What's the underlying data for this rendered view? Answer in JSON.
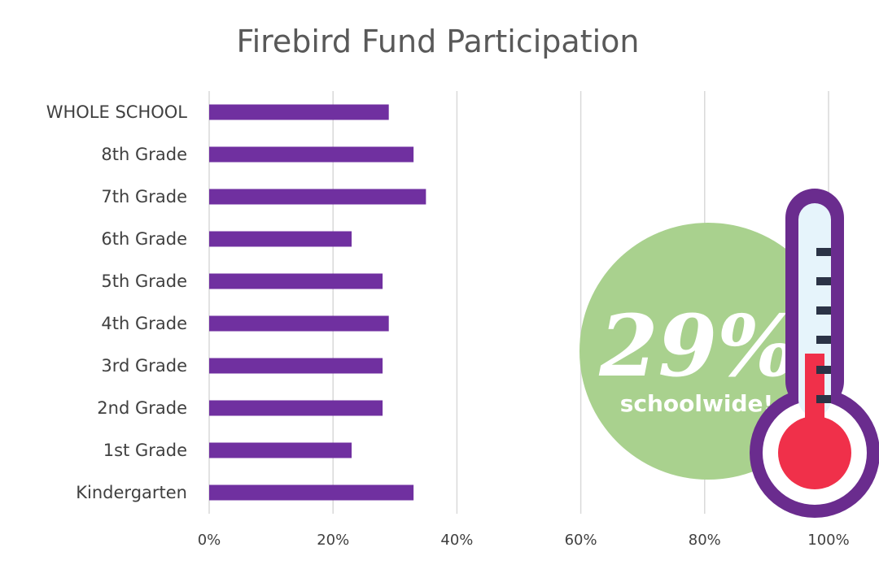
{
  "chart_data": {
    "type": "bar",
    "orientation": "horizontal",
    "title": "Firebird Fund Participation",
    "categories": [
      "WHOLE SCHOOL",
      "8th Grade",
      "7th Grade",
      "6th Grade",
      "5th Grade",
      "4th Grade",
      "3rd Grade",
      "2nd Grade",
      "1st Grade",
      "Kindergarten"
    ],
    "values": [
      0.29,
      0.33,
      0.35,
      0.23,
      0.28,
      0.29,
      0.28,
      0.28,
      0.23,
      0.33
    ],
    "xlim": [
      0,
      1
    ],
    "xticks": [
      "0%",
      "20%",
      "40%",
      "60%",
      "80%",
      "100%"
    ],
    "grid": true,
    "bar_color": "#7030a0"
  },
  "callout": {
    "value": "29%",
    "label": "schoolwide!",
    "circle_color": "#a9d18e"
  },
  "thermometer": {
    "icon": "thermometer-icon",
    "level": 0.29,
    "outline_color": "#6a2c8e",
    "tube_color": "#e6f4fb",
    "fill_color": "#f0304a",
    "tick_color": "#2b3346"
  }
}
